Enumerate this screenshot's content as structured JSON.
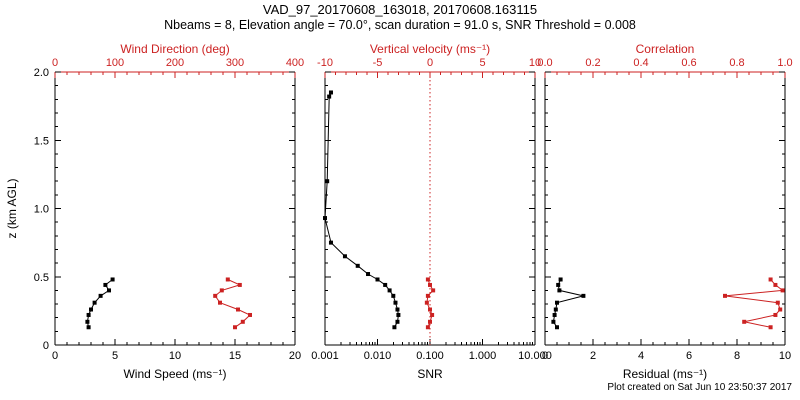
{
  "title": "VAD_97_20170608_163018, 20170608.163115",
  "subtitle": "Nbeams = 8, Elevation angle = 70.0°, scan duration = 91.0 s, SNR Threshold = 0.008",
  "footer": "Plot created on Sat Jun 10 23:50:37 2017",
  "colors": {
    "red": "#cc2222",
    "black": "#000000",
    "background": "#ffffff"
  },
  "chart_data": [
    {
      "id": "wind",
      "type": "scatter",
      "x_bottom": {
        "label": "Wind Speed (ms⁻¹)",
        "color": "black",
        "min": 0,
        "max": 20,
        "ticks": [
          0,
          5,
          10,
          15,
          20
        ],
        "tick_labels": [
          "0",
          "5",
          "10",
          "15",
          "20"
        ],
        "minor_step": 1
      },
      "x_top": {
        "label": "Wind Direction (deg)",
        "color": "red",
        "min": 0,
        "max": 400,
        "ticks": [
          0,
          100,
          200,
          300,
          400
        ],
        "tick_labels": [
          "0",
          "100",
          "200",
          "300",
          "400"
        ],
        "minor_step": 20
      },
      "y": {
        "label": "z (km AGL)",
        "min": 0,
        "max": 2,
        "ticks": [
          0,
          0.5,
          1,
          1.5,
          2
        ],
        "tick_labels": [
          "0",
          "0.5",
          "1.0",
          "1.5",
          "2.0"
        ],
        "minor_step": 0.1
      },
      "series": [
        {
          "name": "wind-speed",
          "axis": "bottom",
          "color": "black",
          "points": [
            [
              2.8,
              0.13
            ],
            [
              2.7,
              0.17
            ],
            [
              2.8,
              0.22
            ],
            [
              3.0,
              0.26
            ],
            [
              3.3,
              0.31
            ],
            [
              3.8,
              0.36
            ],
            [
              4.5,
              0.4
            ],
            [
              4.2,
              0.44
            ],
            [
              4.8,
              0.48
            ]
          ]
        },
        {
          "name": "wind-direction",
          "axis": "top",
          "color": "red",
          "points": [
            [
              300,
              0.13
            ],
            [
              313,
              0.17
            ],
            [
              325,
              0.22
            ],
            [
              305,
              0.26
            ],
            [
              275,
              0.31
            ],
            [
              267,
              0.36
            ],
            [
              278,
              0.4
            ],
            [
              308,
              0.44
            ],
            [
              288,
              0.48
            ]
          ]
        }
      ],
      "ref_lines": []
    },
    {
      "id": "snr",
      "type": "scatter",
      "x_bottom": {
        "label": "SNR",
        "color": "black",
        "min": 0.001,
        "max": 10,
        "log": true,
        "ticks": [
          0.001,
          0.01,
          0.1,
          1,
          10
        ],
        "tick_labels": [
          "0.001",
          "0.010",
          "0.100",
          "1.000",
          "10.000"
        ]
      },
      "x_top": {
        "label": "Vertical velocity (ms⁻¹)",
        "color": "red",
        "min": -10,
        "max": 10,
        "ticks": [
          -10,
          -5,
          0,
          5,
          10
        ],
        "tick_labels": [
          "-10",
          "-5",
          "0",
          "5",
          "10"
        ],
        "minor_step": 1
      },
      "y": {
        "label": "",
        "min": 0,
        "max": 2,
        "ticks": [
          0,
          0.5,
          1,
          1.5,
          2
        ],
        "tick_labels": [
          "0",
          "0.5",
          "1.0",
          "1.5",
          "2.0"
        ],
        "minor_step": 0.1
      },
      "series": [
        {
          "name": "snr-profile",
          "axis": "bottom",
          "color": "black",
          "points": [
            [
              0.0013,
              1.85
            ],
            [
              0.0012,
              1.82
            ],
            [
              0.0011,
              1.2
            ],
            [
              0.001,
              0.93
            ],
            [
              0.0013,
              0.75
            ],
            [
              0.0024,
              0.65
            ],
            [
              0.0042,
              0.58
            ],
            [
              0.0066,
              0.52
            ],
            [
              0.01,
              0.48
            ],
            [
              0.014,
              0.44
            ],
            [
              0.017,
              0.4
            ],
            [
              0.02,
              0.36
            ],
            [
              0.022,
              0.31
            ],
            [
              0.024,
              0.26
            ],
            [
              0.025,
              0.22
            ],
            [
              0.024,
              0.17
            ],
            [
              0.021,
              0.13
            ]
          ]
        },
        {
          "name": "vertical-velocity",
          "axis": "top",
          "color": "red",
          "points": [
            [
              -0.2,
              0.13
            ],
            [
              0.0,
              0.17
            ],
            [
              0.2,
              0.22
            ],
            [
              0.0,
              0.26
            ],
            [
              -0.3,
              0.31
            ],
            [
              -0.2,
              0.36
            ],
            [
              0.3,
              0.4
            ],
            [
              0.0,
              0.44
            ],
            [
              -0.2,
              0.48
            ]
          ]
        }
      ],
      "ref_lines": [
        {
          "axis": "top",
          "value": 0,
          "color": "red",
          "style": "dotted"
        }
      ]
    },
    {
      "id": "residual",
      "type": "scatter",
      "x_bottom": {
        "label": "Residual (ms⁻¹)",
        "color": "black",
        "min": 0,
        "max": 10,
        "ticks": [
          0,
          2,
          4,
          6,
          8,
          10
        ],
        "tick_labels": [
          "0",
          "2",
          "4",
          "6",
          "8",
          "10"
        ],
        "minor_step": 0.5
      },
      "x_top": {
        "label": "Correlation",
        "color": "red",
        "min": 0,
        "max": 1,
        "ticks": [
          0,
          0.2,
          0.4,
          0.6,
          0.8,
          1
        ],
        "tick_labels": [
          "0.0",
          "0.2",
          "0.4",
          "0.6",
          "0.8",
          "1.0"
        ],
        "minor_step": 0.05
      },
      "y": {
        "label": "",
        "min": 0,
        "max": 2,
        "ticks": [
          0,
          0.5,
          1,
          1.5,
          2
        ],
        "tick_labels": [
          "0",
          "0.5",
          "1.0",
          "1.5",
          "2.0"
        ],
        "minor_step": 0.1
      },
      "series": [
        {
          "name": "residual",
          "axis": "bottom",
          "color": "black",
          "points": [
            [
              0.5,
              0.13
            ],
            [
              0.35,
              0.17
            ],
            [
              0.4,
              0.22
            ],
            [
              0.45,
              0.26
            ],
            [
              0.5,
              0.31
            ],
            [
              1.6,
              0.36
            ],
            [
              0.6,
              0.4
            ],
            [
              0.55,
              0.44
            ],
            [
              0.65,
              0.48
            ]
          ]
        },
        {
          "name": "correlation",
          "axis": "top",
          "color": "red",
          "points": [
            [
              0.94,
              0.13
            ],
            [
              0.83,
              0.17
            ],
            [
              0.96,
              0.22
            ],
            [
              0.98,
              0.26
            ],
            [
              0.97,
              0.31
            ],
            [
              0.75,
              0.36
            ],
            [
              0.99,
              0.4
            ],
            [
              0.96,
              0.44
            ],
            [
              0.94,
              0.48
            ]
          ]
        }
      ],
      "ref_lines": []
    }
  ]
}
